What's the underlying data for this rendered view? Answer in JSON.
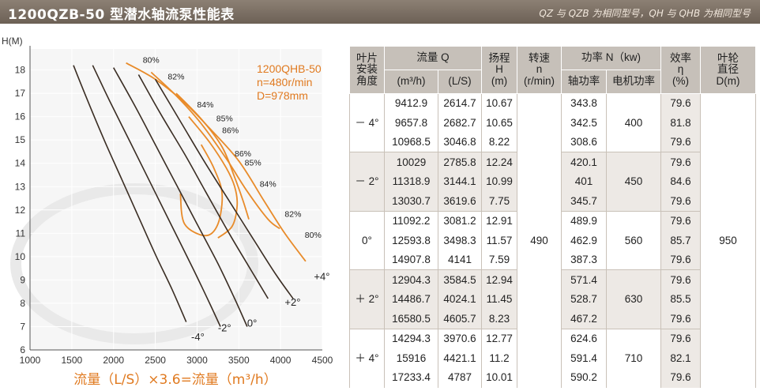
{
  "header": {
    "title": "1200QZB-50 型潜水轴流泵性能表",
    "note": "QZ 与 QZB 为相同型号，QH 与 QHB 为相同型号"
  },
  "chart_data": {
    "type": "line",
    "ylabel": "H(M)",
    "xlabel": "流量（L/S）×3.6=流量（m³/h）",
    "xlim": [
      1000,
      4500
    ],
    "ylim": [
      6,
      19
    ],
    "xticks": [
      1000,
      1500,
      2000,
      2500,
      3000,
      3500,
      4000,
      4500
    ],
    "yticks": [
      6,
      7,
      8,
      9,
      10,
      11,
      12,
      13,
      14,
      15,
      16,
      17,
      18
    ],
    "annotation": {
      "lines": [
        "1200QHB-50",
        "n=480r/min",
        "D=978mm"
      ]
    },
    "colors": {
      "head_curve": "#e88b2a",
      "efficiency_curve": "#3a2d23",
      "label": "#e07a20"
    },
    "head_curves": [
      {
        "name": "-4°",
        "points": [
          [
            1520,
            18.2
          ],
          [
            1700,
            16.6
          ],
          [
            1900,
            14.9
          ],
          [
            2100,
            13.3
          ],
          [
            2300,
            11.7
          ],
          [
            2500,
            10.1
          ],
          [
            2700,
            8.6
          ],
          [
            2870,
            7.2
          ]
        ]
      },
      {
        "name": "-2°",
        "points": [
          [
            1750,
            18.2
          ],
          [
            1950,
            16.7
          ],
          [
            2200,
            14.9
          ],
          [
            2450,
            13.1
          ],
          [
            2700,
            11.3
          ],
          [
            2950,
            9.5
          ],
          [
            3150,
            8.0
          ],
          [
            3280,
            7.0
          ]
        ]
      },
      {
        "name": "0°",
        "points": [
          [
            2000,
            18.1
          ],
          [
            2250,
            16.5
          ],
          [
            2500,
            14.8
          ],
          [
            2750,
            13.1
          ],
          [
            3000,
            11.4
          ],
          [
            3250,
            9.7
          ],
          [
            3450,
            8.2
          ],
          [
            3600,
            7.0
          ]
        ]
      },
      {
        "name": "+2°",
        "points": [
          [
            2300,
            17.8
          ],
          [
            2550,
            16.2
          ],
          [
            2850,
            14.4
          ],
          [
            3100,
            12.8
          ],
          [
            3400,
            10.9
          ],
          [
            3650,
            9.4
          ],
          [
            3850,
            8.2
          ]
        ]
      },
      {
        "name": "+4°",
        "points": [
          [
            2500,
            17.6
          ],
          [
            2800,
            15.8
          ],
          [
            3100,
            14.0
          ],
          [
            3400,
            12.3
          ],
          [
            3700,
            10.6
          ],
          [
            3950,
            9.2
          ],
          [
            4150,
            8.2
          ]
        ]
      }
    ],
    "efficiency_curves": [
      {
        "label": "80%",
        "points": [
          [
            2150,
            18.3
          ],
          [
            2500,
            17.6
          ],
          [
            2850,
            16.6
          ],
          [
            3150,
            15.5
          ],
          [
            3500,
            14.1
          ],
          [
            3800,
            12.4
          ],
          [
            4050,
            11.0
          ],
          [
            4300,
            9.8
          ]
        ]
      },
      {
        "label": "82%",
        "points": [
          [
            2450,
            17.9
          ],
          [
            2750,
            16.9
          ],
          [
            3050,
            15.7
          ],
          [
            3350,
            14.2
          ],
          [
            3600,
            12.8
          ],
          [
            3850,
            11.6
          ],
          [
            3990,
            11.2
          ]
        ]
      },
      {
        "label": "84%",
        "points": [
          [
            2750,
            17.0
          ],
          [
            3050,
            15.9
          ],
          [
            3300,
            14.7
          ],
          [
            3450,
            13.4
          ],
          [
            3550,
            12.4
          ],
          [
            3620,
            11.6
          ]
        ]
      },
      {
        "label": "85%",
        "points": [
          [
            2900,
            16.0
          ],
          [
            3150,
            14.9
          ],
          [
            3350,
            13.8
          ],
          [
            3450,
            13.0
          ],
          [
            3480,
            12.2
          ],
          [
            3420,
            11.3
          ],
          [
            3250,
            10.8
          ]
        ]
      },
      {
        "label": "86%",
        "points": [
          [
            3050,
            14.8
          ],
          [
            3200,
            13.8
          ],
          [
            3300,
            12.7
          ],
          [
            3250,
            11.4
          ],
          [
            3100,
            10.9
          ],
          [
            2850,
            11.4
          ],
          [
            2800,
            12.7
          ]
        ]
      }
    ],
    "efficiency_labels": [
      {
        "text": "80%",
        "x": 2350,
        "y": 18.3
      },
      {
        "text": "82%",
        "x": 2650,
        "y": 17.6
      },
      {
        "text": "84%",
        "x": 3000,
        "y": 16.4
      },
      {
        "text": "85%",
        "x": 3230,
        "y": 15.8
      },
      {
        "text": "86%",
        "x": 3300,
        "y": 15.3
      },
      {
        "text": "86%",
        "x": 3450,
        "y": 14.3
      },
      {
        "text": "85%",
        "x": 3570,
        "y": 13.9
      },
      {
        "text": "84%",
        "x": 3750,
        "y": 13.0
      },
      {
        "text": "82%",
        "x": 4050,
        "y": 11.7
      },
      {
        "text": "80%",
        "x": 4290,
        "y": 10.8
      }
    ],
    "angle_labels": [
      {
        "text": "+4°",
        "x": 4400,
        "y": 9.0
      },
      {
        "text": "+2°",
        "x": 4050,
        "y": 7.9
      },
      {
        "text": "0°",
        "x": 3600,
        "y": 7.0
      },
      {
        "text": "-2°",
        "x": 3250,
        "y": 6.8
      },
      {
        "text": "-4°",
        "x": 2930,
        "y": 6.4
      }
    ]
  },
  "table": {
    "headers": {
      "angle": [
        "叶片",
        "安装",
        "角度"
      ],
      "flow": "流量 Q",
      "flow_m3h": "(m³/h)",
      "flow_ls": "(L/S)",
      "head": [
        "扬程",
        "H",
        "(m)"
      ],
      "speed": [
        "转速",
        "n",
        "(r/min)"
      ],
      "power": "功率 N（kw)",
      "shaft_power": "轴功率",
      "motor_power": "电机功率",
      "efficiency": [
        "效率",
        "η",
        "(%)"
      ],
      "impeller": [
        "叶轮",
        "直径",
        "D(m)"
      ]
    },
    "speed": "490",
    "impeller": "950",
    "groups": [
      {
        "angle": "－ 4°",
        "motor": "400",
        "rows": [
          {
            "q_m3h": "9412.9",
            "q_ls": "2614.7",
            "h": "10.67",
            "shaft": "343.8",
            "eff": "79.6"
          },
          {
            "q_m3h": "9657.8",
            "q_ls": "2682.7",
            "h": "10.65",
            "shaft": "342.5",
            "eff": "81.8"
          },
          {
            "q_m3h": "10968.5",
            "q_ls": "3046.8",
            "h": "8.22",
            "shaft": "308.6",
            "eff": "79.6"
          }
        ]
      },
      {
        "angle": "－ 2°",
        "motor": "450",
        "rows": [
          {
            "q_m3h": "10029",
            "q_ls": "2785.8",
            "h": "12.24",
            "shaft": "420.1",
            "eff": "79.6"
          },
          {
            "q_m3h": "11318.9",
            "q_ls": "3144.1",
            "h": "10.99",
            "shaft": "401",
            "eff": "84.6"
          },
          {
            "q_m3h": "13030.7",
            "q_ls": "3619.6",
            "h": "7.75",
            "shaft": "345.7",
            "eff": "79.6"
          }
        ]
      },
      {
        "angle": "0°",
        "motor": "560",
        "rows": [
          {
            "q_m3h": "11092.2",
            "q_ls": "3081.2",
            "h": "12.91",
            "shaft": "489.9",
            "eff": "79.6"
          },
          {
            "q_m3h": "12593.8",
            "q_ls": "3498.3",
            "h": "11.57",
            "shaft": "462.9",
            "eff": "85.7"
          },
          {
            "q_m3h": "14907.8",
            "q_ls": "4141",
            "h": "7.59",
            "shaft": "387.3",
            "eff": "79.6"
          }
        ]
      },
      {
        "angle": "＋ 2°",
        "motor": "630",
        "rows": [
          {
            "q_m3h": "12904.3",
            "q_ls": "3584.5",
            "h": "12.94",
            "shaft": "571.4",
            "eff": "79.6"
          },
          {
            "q_m3h": "14486.7",
            "q_ls": "4024.1",
            "h": "11.45",
            "shaft": "528.7",
            "eff": "85.5"
          },
          {
            "q_m3h": "16580.5",
            "q_ls": "4605.7",
            "h": "8.23",
            "shaft": "467.2",
            "eff": "79.6"
          }
        ]
      },
      {
        "angle": "＋ 4°",
        "motor": "710",
        "rows": [
          {
            "q_m3h": "14294.3",
            "q_ls": "3970.6",
            "h": "12.77",
            "shaft": "624.6",
            "eff": "79.6"
          },
          {
            "q_m3h": "15916",
            "q_ls": "4421.1",
            "h": "11.2",
            "shaft": "591.4",
            "eff": "82.1"
          },
          {
            "q_m3h": "17233.4",
            "q_ls": "4787",
            "h": "10.01",
            "shaft": "590.2",
            "eff": "79.6"
          }
        ]
      }
    ]
  }
}
